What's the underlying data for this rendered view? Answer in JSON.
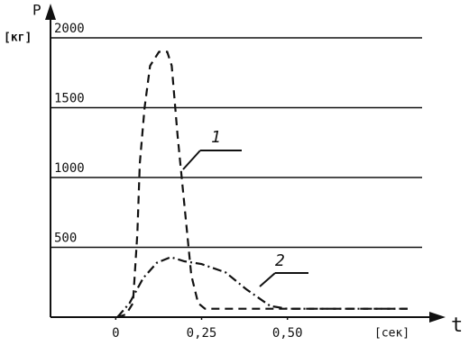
{
  "chart_data": {
    "type": "line",
    "y_label": "P",
    "y_unit": "[кг]",
    "x_label": "t",
    "x_unit": "[сек]",
    "xlim": [
      -0.19,
      0.95
    ],
    "ylim": [
      0,
      2200
    ],
    "xticks": [
      0,
      {
        "value": 0.25,
        "label": "0,25"
      },
      {
        "value": 0.5,
        "label": "0,50"
      }
    ],
    "yticks": [
      500,
      1000,
      1500,
      2000
    ],
    "grid": true,
    "series": [
      {
        "label": "1",
        "color": "#111111",
        "style": "dashed",
        "x": [
          0.005,
          0.03,
          0.05,
          0.063,
          0.07,
          0.084,
          0.1,
          0.126,
          0.15,
          0.163,
          0.18,
          0.2,
          0.22,
          0.24,
          0.26,
          0.45,
          0.85
        ],
        "values": [
          0,
          20,
          100,
          600,
          1100,
          1500,
          1800,
          1900,
          1900,
          1800,
          1300,
          800,
          300,
          100,
          60,
          60,
          60
        ]
      },
      {
        "label": "2",
        "color": "#111111",
        "style": "dashdot",
        "x": [
          0.005,
          0.04,
          0.08,
          0.12,
          0.16,
          0.2,
          0.25,
          0.32,
          0.38,
          0.45,
          0.5,
          0.85
        ],
        "values": [
          0,
          100,
          280,
          390,
          430,
          400,
          380,
          320,
          200,
          80,
          60,
          60
        ]
      }
    ]
  }
}
